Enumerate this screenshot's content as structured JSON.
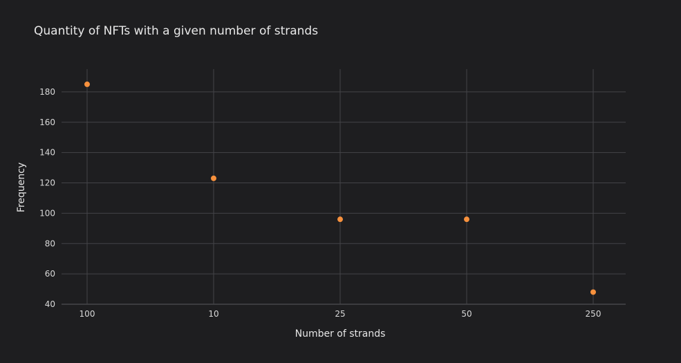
{
  "chart_data": {
    "type": "scatter",
    "title": "Quantity of NFTs with a given number of strands",
    "xlabel": "Number of strands",
    "ylabel": "Frequency",
    "x_axis_type": "category",
    "categories": [
      "100",
      "10",
      "25",
      "50",
      "250"
    ],
    "values": [
      185,
      123,
      96,
      96,
      48
    ],
    "y_ticks": [
      40,
      60,
      80,
      100,
      120,
      140,
      160,
      180
    ],
    "ylim": [
      40,
      195
    ],
    "grid": true,
    "legend": "none",
    "marker_color": "#f7913d",
    "background_color": "#1e1e20"
  }
}
